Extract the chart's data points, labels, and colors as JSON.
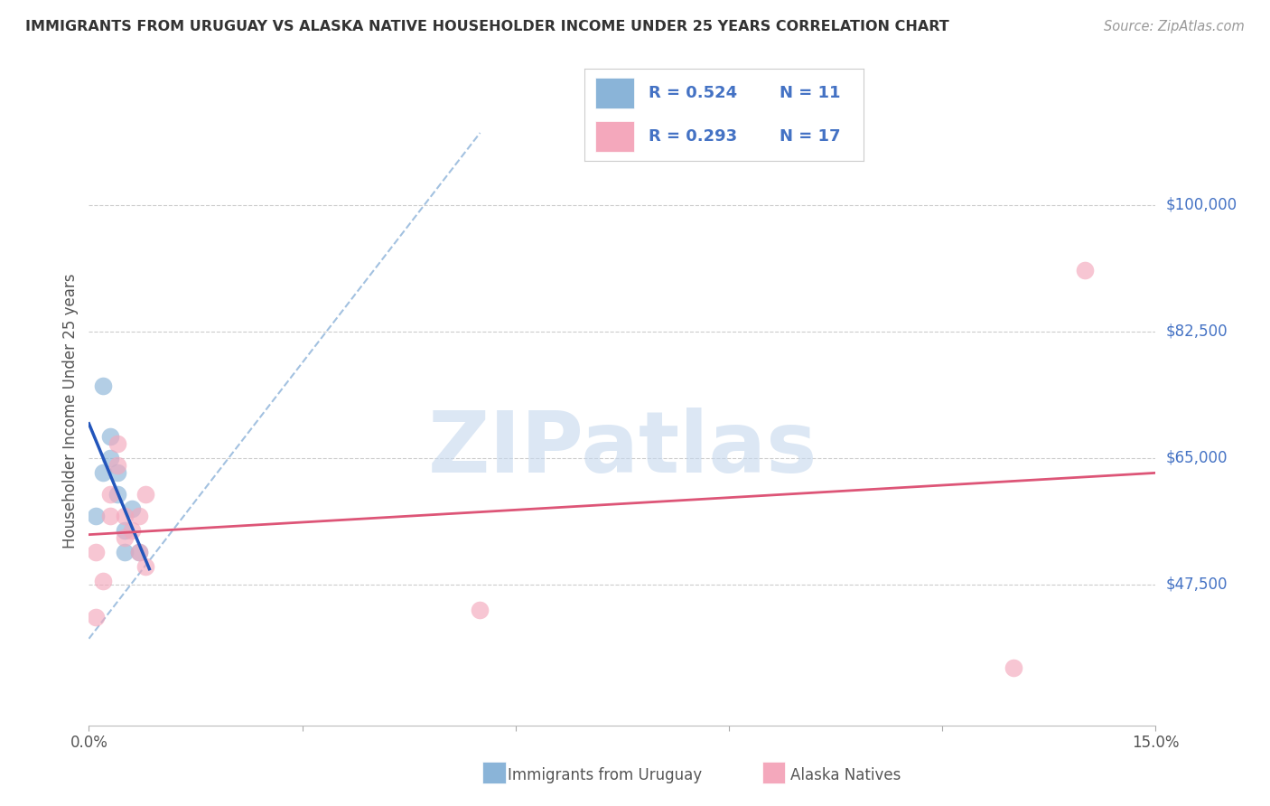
{
  "title": "IMMIGRANTS FROM URUGUAY VS ALASKA NATIVE HOUSEHOLDER INCOME UNDER 25 YEARS CORRELATION CHART",
  "source": "Source: ZipAtlas.com",
  "ylabel": "Householder Income Under 25 years",
  "xlim": [
    0.0,
    0.15
  ],
  "ylim": [
    28000,
    115000
  ],
  "xtick_values": [
    0.0,
    0.03,
    0.06,
    0.09,
    0.12,
    0.15
  ],
  "xticklabels": [
    "0.0%",
    "",
    "",
    "",
    "",
    "15.0%"
  ],
  "ytick_values": [
    47500,
    65000,
    82500,
    100000
  ],
  "ytick_labels": [
    "$47,500",
    "$65,000",
    "$82,500",
    "$100,000"
  ],
  "legend_label_blue": "Immigrants from Uruguay",
  "legend_label_pink": "Alaska Natives",
  "blue_color": "#8ab4d8",
  "pink_color": "#f4a8bc",
  "blue_line_color": "#2255bb",
  "pink_line_color": "#dd5577",
  "ref_line_color": "#99bbdd",
  "legend_r_blue": "R = 0.524",
  "legend_n_blue": "N = 11",
  "legend_r_pink": "R = 0.293",
  "legend_n_pink": "N = 17",
  "watermark": "ZIPatlas",
  "watermark_color": "#c5d8ee",
  "background_color": "#ffffff",
  "grid_color": "#cccccc",
  "title_color": "#333333",
  "source_color": "#999999",
  "axis_label_color": "#4472c4",
  "tick_label_color": "#555555",
  "blue_x": [
    0.001,
    0.002,
    0.002,
    0.003,
    0.003,
    0.004,
    0.004,
    0.005,
    0.005,
    0.006,
    0.007
  ],
  "blue_y": [
    57000,
    75000,
    63000,
    68000,
    65000,
    63000,
    60000,
    55000,
    52000,
    58000,
    52000
  ],
  "pink_x": [
    0.001,
    0.001,
    0.002,
    0.003,
    0.003,
    0.004,
    0.004,
    0.005,
    0.005,
    0.006,
    0.007,
    0.007,
    0.008,
    0.008,
    0.055,
    0.13,
    0.14
  ],
  "pink_y": [
    43000,
    52000,
    48000,
    60000,
    57000,
    67000,
    64000,
    57000,
    54000,
    55000,
    57000,
    52000,
    60000,
    50000,
    44000,
    36000,
    91000
  ]
}
